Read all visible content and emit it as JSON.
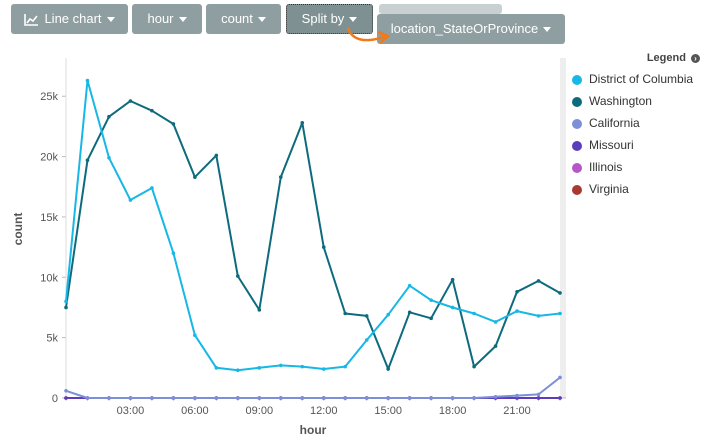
{
  "toolbar": {
    "chart_type_label": "Line chart",
    "x_field_label": "hour",
    "y_field_label": "count",
    "split_label": "Split by",
    "split_field_label": "location_StateOrProvince"
  },
  "legend": {
    "title": "Legend",
    "items": [
      {
        "label": "District of Columbia",
        "color": "#17b7e6"
      },
      {
        "label": "Washington",
        "color": "#0d6b7d"
      },
      {
        "label": "California",
        "color": "#7d8fd6"
      },
      {
        "label": "Missouri",
        "color": "#5b3dbd"
      },
      {
        "label": "Illinois",
        "color": "#b657c8"
      },
      {
        "label": "Virginia",
        "color": "#a83a32"
      }
    ]
  },
  "chart_data": {
    "type": "line",
    "xlabel": "hour",
    "ylabel": "count",
    "x_ticks": [
      "03:00",
      "06:00",
      "09:00",
      "12:00",
      "15:00",
      "18:00",
      "21:00"
    ],
    "y_ticks": [
      "0",
      "5k",
      "10k",
      "15k",
      "20k",
      "25k"
    ],
    "ylim": [
      0,
      28000
    ],
    "x": [
      0,
      1,
      2,
      3,
      4,
      5,
      6,
      7,
      8,
      9,
      10,
      11,
      12,
      13,
      14,
      15,
      16,
      17,
      18,
      19,
      20,
      21,
      22,
      23
    ],
    "series": [
      {
        "name": "District of Columbia",
        "color": "#17b7e6",
        "values": [
          8000,
          26300,
          19900,
          16400,
          17400,
          12000,
          5200,
          2500,
          2300,
          2500,
          2700,
          2600,
          2400,
          2600,
          4800,
          6900,
          9300,
          8100,
          7500,
          7000,
          6300,
          7200,
          6800,
          7000
        ]
      },
      {
        "name": "Washington",
        "color": "#0d6b7d",
        "values": [
          7500,
          19700,
          23300,
          24600,
          23800,
          22700,
          18300,
          20100,
          10100,
          7300,
          18300,
          22800,
          12500,
          7000,
          6800,
          2400,
          7100,
          6600,
          9800,
          2600,
          4300,
          8800,
          9700,
          8700
        ]
      },
      {
        "name": "California",
        "color": "#7d8fd6",
        "values": [
          600,
          0,
          0,
          0,
          0,
          0,
          0,
          0,
          0,
          0,
          0,
          0,
          0,
          0,
          0,
          0,
          0,
          0,
          0,
          0,
          100,
          200,
          300,
          1700
        ]
      },
      {
        "name": "Missouri",
        "color": "#5b3dbd",
        "values": [
          0,
          0,
          0,
          0,
          0,
          0,
          0,
          0,
          0,
          0,
          0,
          0,
          0,
          0,
          0,
          0,
          0,
          0,
          0,
          0,
          0,
          0,
          0,
          0
        ]
      },
      {
        "name": "Illinois",
        "color": "#b657c8",
        "values": [
          0,
          0,
          0,
          0,
          0,
          0,
          0,
          0,
          0,
          0,
          0,
          0,
          0,
          0,
          0,
          0,
          0,
          0,
          0,
          0,
          0,
          0,
          0,
          0
        ]
      },
      {
        "name": "Virginia",
        "color": "#a83a32",
        "values": [
          0,
          0,
          0,
          0,
          0,
          0,
          0,
          0,
          0,
          0,
          0,
          0,
          0,
          0,
          0,
          0,
          0,
          0,
          0,
          0,
          0,
          0,
          0,
          0
        ]
      }
    ]
  }
}
